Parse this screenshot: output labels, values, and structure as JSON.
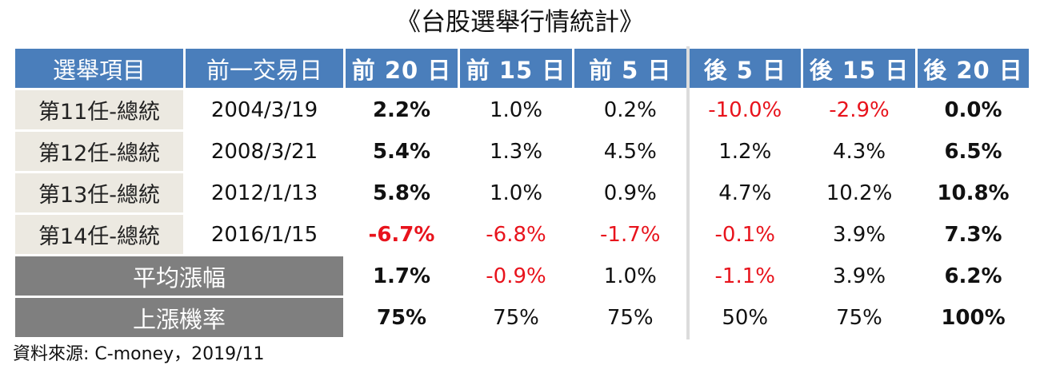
{
  "title": "《台股選舉行情統計》",
  "source": "資料來源: C-money，2019/11",
  "chart_data": {
    "type": "table",
    "columns": [
      "選舉項目",
      "前一交易日",
      "前 20 日",
      "前 15 日",
      "前 5 日",
      "後 5 日",
      "後 15 日",
      "後 20 日"
    ],
    "rows": [
      {
        "label": "第11任-總統",
        "date": "2004/3/19",
        "values": [
          "2.2%",
          "1.0%",
          "0.2%",
          "-10.0%",
          "-2.9%",
          "0.0%"
        ]
      },
      {
        "label": "第12任-總統",
        "date": "2008/3/21",
        "values": [
          "5.4%",
          "1.3%",
          "4.5%",
          "1.2%",
          "4.3%",
          "6.5%"
        ]
      },
      {
        "label": "第13任-總統",
        "date": "2012/1/13",
        "values": [
          "5.8%",
          "1.0%",
          "0.9%",
          "4.7%",
          "10.2%",
          "10.8%"
        ]
      },
      {
        "label": "第14任-總統",
        "date": "2016/1/15",
        "values": [
          "-6.7%",
          "-6.8%",
          "-1.7%",
          "-0.1%",
          "3.9%",
          "7.3%"
        ]
      }
    ],
    "summary": [
      {
        "label": "平均漲幅",
        "values": [
          "1.7%",
          "-0.9%",
          "1.0%",
          "-1.1%",
          "3.9%",
          "6.2%"
        ]
      },
      {
        "label": "上漲機率",
        "values": [
          "75%",
          "75%",
          "75%",
          "50%",
          "75%",
          "100%"
        ]
      }
    ],
    "colors": {
      "header": "#4a7ebb",
      "label_bg": "#ece9e1",
      "summary_bg": "#7f7f7f",
      "negative": "#e8131c"
    }
  }
}
